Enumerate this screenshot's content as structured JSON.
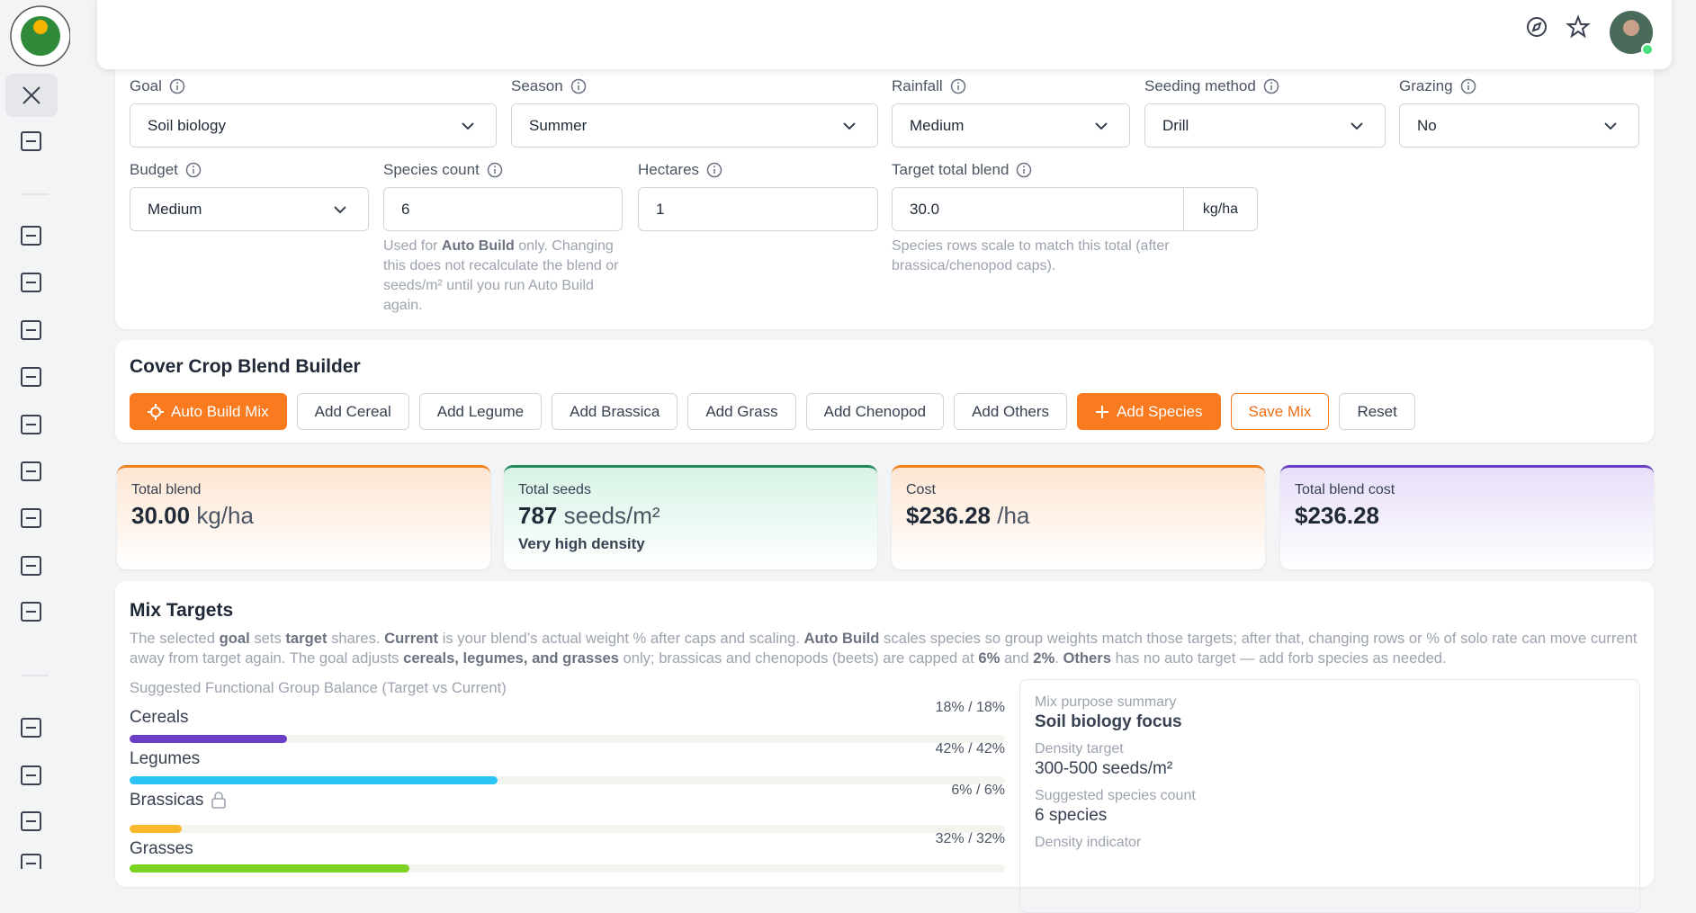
{
  "form": {
    "fields": [
      {
        "label": "Goal",
        "value": "Soil biology",
        "control": "select"
      },
      {
        "label": "Season",
        "value": "Summer",
        "control": "select"
      },
      {
        "label": "Rainfall",
        "value": "Medium",
        "control": "select"
      },
      {
        "label": "Seeding method",
        "value": "Drill",
        "control": "select"
      },
      {
        "label": "Grazing",
        "value": "No",
        "control": "select"
      },
      {
        "label": "Budget",
        "value": "Medium",
        "control": "select"
      },
      {
        "label": "Species count",
        "value": "6",
        "control": "input"
      },
      {
        "label": "Hectares",
        "value": "1",
        "control": "input"
      },
      {
        "label": "Target total blend",
        "value": "30.0",
        "control": "input",
        "unit": "kg/ha"
      }
    ],
    "species_help": [
      {
        "text": "Used for "
      },
      {
        "text": "Auto Build",
        "bold": true
      },
      {
        "text": " only. Changing this does not recalculate the blend or seeds/m² until you run Auto Build again."
      }
    ],
    "target_help": [
      {
        "text": "Species rows scale to match this total (after brassica/chenopod caps)."
      }
    ]
  },
  "builder": {
    "title": "Cover Crop Blend Builder",
    "buttons": [
      {
        "label": "Auto Build Mix",
        "style": "primary",
        "icon": "spark"
      },
      {
        "label": "Add Cereal",
        "style": "default"
      },
      {
        "label": "Add Legume",
        "style": "default"
      },
      {
        "label": "Add Brassica",
        "style": "default"
      },
      {
        "label": "Add Grass",
        "style": "default"
      },
      {
        "label": "Add Chenopod",
        "style": "default"
      },
      {
        "label": "Add Others",
        "style": "default"
      },
      {
        "label": "Add Species",
        "style": "primary",
        "icon": "plus"
      },
      {
        "label": "Save Mix",
        "style": "outline"
      },
      {
        "label": "Reset",
        "style": "default"
      }
    ]
  },
  "stats": [
    {
      "label": "Total blend",
      "value": "30.00",
      "unit": "kg/ha",
      "accent": "#f0821e",
      "tint": "#fde6d2"
    },
    {
      "label": "Total seeds",
      "value": "787",
      "unit": "seeds/m²",
      "note": "Very high density",
      "accent": "#1f8a5a",
      "tint": "#d7f4e6"
    },
    {
      "label": "Cost",
      "value": "$236.28",
      "unit": "/ha",
      "accent": "#f0821e",
      "tint": "#fde6d2"
    },
    {
      "label": "Total blend cost",
      "value": "$236.28",
      "accent": "#6b3fc4",
      "tint": "#e7def8"
    }
  ],
  "mix_targets": {
    "title": "Mix Targets",
    "description": [
      {
        "text": "The selected "
      },
      {
        "text": "goal",
        "bold": true
      },
      {
        "text": " sets "
      },
      {
        "text": "target",
        "bold": true
      },
      {
        "text": " shares. "
      },
      {
        "text": "Current",
        "bold": true
      },
      {
        "text": " is your blend’s actual weight % after caps and scaling. "
      },
      {
        "text": "Auto Build",
        "bold": true
      },
      {
        "text": " scales species so group weights match those targets; after that, changing rows or % of solo rate can move current away from target again. The goal adjusts "
      },
      {
        "text": "cereals, legumes, and grasses",
        "bold": true
      },
      {
        "text": " only; brassicas and chenopods (beets) are capped at "
      },
      {
        "text": "6%",
        "bold": true
      },
      {
        "text": " and "
      },
      {
        "text": "2%",
        "bold": true
      },
      {
        "text": ". "
      },
      {
        "text": "Others",
        "bold": true
      },
      {
        "text": " has no auto target — add forb species as needed."
      }
    ],
    "subtitle": "Suggested Functional Group Balance (Target vs Current)",
    "groups": [
      {
        "name": "Cereals",
        "label": "18% / 18%",
        "current": 18,
        "color": "#6b3fc4"
      },
      {
        "name": "Legumes",
        "label": "42% / 42%",
        "current": 42,
        "color": "#2cc4f4"
      },
      {
        "name": "Brassicas",
        "label": "6% / 6%",
        "current": 6,
        "color": "#f9b92c",
        "locked": true
      },
      {
        "name": "Grasses",
        "label": "32% / 32%",
        "current": 32,
        "color": "#7dd322"
      }
    ],
    "summary": [
      {
        "label": "Mix purpose summary",
        "value": "Soil biology focus",
        "strong": true
      },
      {
        "label": "Density target",
        "value": "300-500 seeds/m²"
      },
      {
        "label": "Suggested species count",
        "value": "6 species"
      },
      {
        "label": "Density indicator"
      }
    ]
  }
}
